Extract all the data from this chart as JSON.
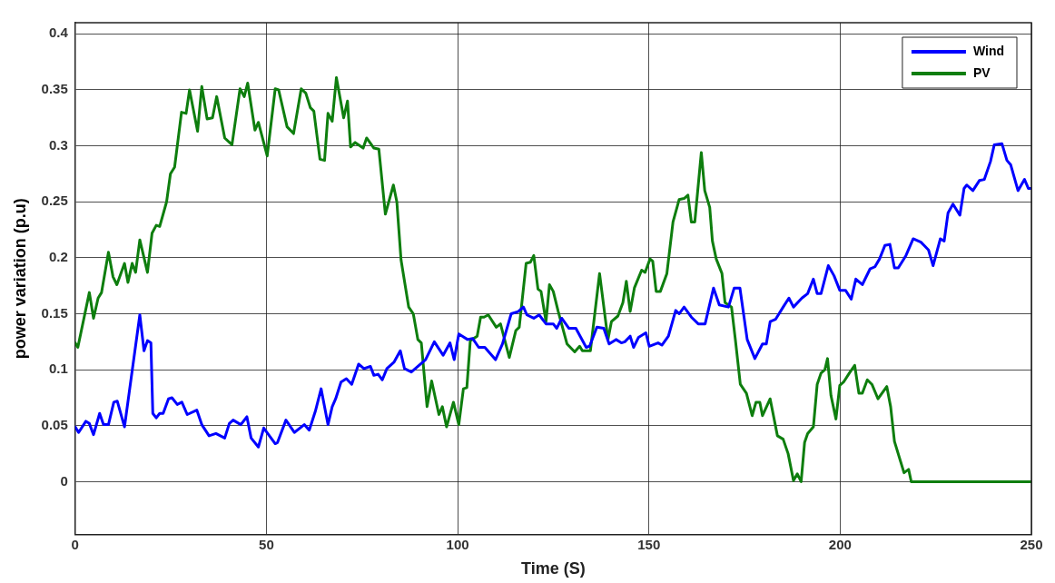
{
  "chart_data": {
    "type": "line",
    "xlabel": "Time (S)",
    "ylabel": "power variation (p.u)",
    "xlim": [
      0,
      250
    ],
    "xticks": [
      0,
      50,
      100,
      150,
      200,
      250
    ],
    "ylim": [
      -0.047,
      0.41
    ],
    "yticks": [
      0,
      0.05,
      0.1,
      0.15,
      0.2,
      0.25,
      0.3,
      0.35,
      0.4
    ],
    "grid": true,
    "legend": "top right",
    "marker": "none",
    "line_style": "solid",
    "series": [
      {
        "name": "Wind",
        "color": "#0000ff",
        "x": [
          0,
          0.9,
          2.8,
          3.7,
          4.8,
          6.4,
          7.4,
          8.7,
          10.1,
          11,
          12.9,
          16.9,
          18,
          18.9,
          19.8,
          20.3,
          21.2,
          22.1,
          23,
          24.4,
          25.3,
          26.7,
          27.9,
          29.3,
          31.8,
          33.1,
          35,
          36.8,
          39.1,
          40.3,
          41.3,
          43.3,
          44.9,
          46,
          47.9,
          49.3,
          52.3,
          52.9,
          55.1,
          57.3,
          59.9,
          61.2,
          62.8,
          64.3,
          66.1,
          67.2,
          68.1,
          69.5,
          70.9,
          72.3,
          74.1,
          75.5,
          77.2,
          78.1,
          79.2,
          80.3,
          81.5,
          83.4,
          85,
          86.1,
          87.9,
          91.6,
          93.9,
          96.2,
          98,
          99.1,
          100.3,
          102.6,
          103.9,
          105.5,
          107.1,
          109.9,
          111.7,
          114,
          115.8,
          117.2,
          118.1,
          119.9,
          121.3,
          123.1,
          125,
          125.9,
          127.2,
          129.1,
          130.9,
          133.6,
          134.5,
          136.4,
          138.2,
          139.6,
          141.4,
          142.8,
          143.7,
          145.1,
          146,
          147.3,
          149.2,
          150.1,
          152.4,
          153.4,
          155.1,
          157,
          157.9,
          159.2,
          161.1,
          162.9,
          164.7,
          166.9,
          168.4,
          170.8,
          172.3,
          173.8,
          175.7,
          177.7,
          179.7,
          180.7,
          181.7,
          183.1,
          185.1,
          186.6,
          187.8,
          190,
          191.5,
          193,
          194,
          195,
          196.9,
          198.4,
          199.9,
          201.4,
          202.9,
          204.1,
          205.8,
          207.8,
          209.1,
          210.3,
          211.7,
          213,
          214.2,
          215.2,
          217.2,
          219.1,
          221.1,
          223.1,
          224.3,
          226.2,
          227.2,
          228.2,
          229.5,
          231.3,
          232.4,
          233.1,
          234.7,
          236.4,
          237.7,
          239.3,
          240.3,
          242.3,
          243.6,
          244.6,
          246.5,
          248.2,
          249.2,
          250
        ],
        "values": [
          0.049,
          0.044,
          0.054,
          0.052,
          0.042,
          0.061,
          0.051,
          0.051,
          0.071,
          0.072,
          0.049,
          0.149,
          0.117,
          0.126,
          0.124,
          0.061,
          0.057,
          0.061,
          0.061,
          0.074,
          0.075,
          0.069,
          0.071,
          0.06,
          0.064,
          0.051,
          0.041,
          0.043,
          0.039,
          0.052,
          0.055,
          0.051,
          0.058,
          0.039,
          0.031,
          0.048,
          0.034,
          0.035,
          0.055,
          0.044,
          0.051,
          0.046,
          0.063,
          0.083,
          0.051,
          0.067,
          0.074,
          0.089,
          0.092,
          0.087,
          0.105,
          0.101,
          0.103,
          0.095,
          0.096,
          0.091,
          0.101,
          0.107,
          0.117,
          0.101,
          0.098,
          0.109,
          0.125,
          0.113,
          0.124,
          0.109,
          0.132,
          0.127,
          0.128,
          0.12,
          0.12,
          0.109,
          0.123,
          0.15,
          0.152,
          0.156,
          0.149,
          0.146,
          0.149,
          0.141,
          0.141,
          0.137,
          0.146,
          0.137,
          0.137,
          0.12,
          0.121,
          0.138,
          0.137,
          0.123,
          0.127,
          0.124,
          0.125,
          0.13,
          0.12,
          0.129,
          0.133,
          0.121,
          0.124,
          0.122,
          0.13,
          0.153,
          0.15,
          0.156,
          0.147,
          0.141,
          0.141,
          0.173,
          0.158,
          0.156,
          0.173,
          0.173,
          0.127,
          0.11,
          0.123,
          0.123,
          0.143,
          0.145,
          0.156,
          0.164,
          0.156,
          0.164,
          0.168,
          0.181,
          0.168,
          0.168,
          0.193,
          0.184,
          0.171,
          0.171,
          0.163,
          0.181,
          0.176,
          0.19,
          0.192,
          0.199,
          0.211,
          0.212,
          0.191,
          0.191,
          0.202,
          0.217,
          0.214,
          0.207,
          0.193,
          0.217,
          0.215,
          0.24,
          0.248,
          0.238,
          0.262,
          0.265,
          0.26,
          0.269,
          0.27,
          0.286,
          0.301,
          0.302,
          0.287,
          0.283,
          0.26,
          0.27,
          0.262,
          0.262
        ]
      },
      {
        "name": "PV",
        "color": "#0e7e0e",
        "x": [
          0,
          0.7,
          3.7,
          4.8,
          6,
          6.9,
          8.7,
          9.9,
          10.9,
          12.9,
          13.8,
          14.9,
          15.8,
          16.9,
          18.9,
          20.1,
          21.2,
          22.1,
          23.9,
          24.9,
          26,
          27.8,
          29,
          29.9,
          32,
          33.1,
          34.5,
          35.9,
          37,
          39.1,
          41,
          43.1,
          44.2,
          45.1,
          47,
          47.9,
          50.2,
          52.3,
          53.2,
          55.4,
          57.1,
          59.1,
          60.3,
          61.5,
          62.4,
          64,
          65.2,
          66.1,
          67.2,
          68.3,
          70.2,
          71.2,
          72,
          73.2,
          75.3,
          76.2,
          78.1,
          79.4,
          81.1,
          83.2,
          84.1,
          85.2,
          87.2,
          88.4,
          89.6,
          90.5,
          92,
          93.2,
          95.1,
          96,
          97.1,
          98.9,
          100.3,
          101.5,
          102.4,
          103.3,
          105.1,
          106,
          106.9,
          108,
          110.1,
          111.2,
          113.5,
          115.2,
          116.1,
          117.9,
          119,
          119.9,
          121,
          121.8,
          123.1,
          124,
          125,
          126.3,
          128.6,
          130.6,
          131.9,
          132.6,
          134.7,
          137.1,
          139.3,
          140.2,
          141.9,
          143.2,
          144.1,
          145.1,
          146.2,
          148.1,
          149,
          150.3,
          151,
          151.9,
          153,
          154.7,
          156.3,
          157.9,
          159.2,
          160.2,
          161.1,
          162,
          163.7,
          164.6,
          165.9,
          166.6,
          167.6,
          169.1,
          169.9,
          171.6,
          172.6,
          173.9,
          175.5,
          177,
          178,
          179,
          179.7,
          181.7,
          183.6,
          185.1,
          186.4,
          187.8,
          188.8,
          189.8,
          190.7,
          191.5,
          193,
          194,
          195,
          196,
          196.7,
          197.6,
          198.9,
          199.9,
          200.9,
          202.4,
          203.8,
          204.9,
          205.8,
          207.1,
          208.3,
          209.9,
          212.2,
          213.2,
          214.2,
          216.7,
          217.9,
          218.6,
          250
        ],
        "values": [
          0.124,
          0.12,
          0.169,
          0.146,
          0.164,
          0.169,
          0.205,
          0.183,
          0.176,
          0.195,
          0.178,
          0.195,
          0.187,
          0.216,
          0.187,
          0.222,
          0.229,
          0.228,
          0.25,
          0.275,
          0.281,
          0.33,
          0.329,
          0.35,
          0.313,
          0.353,
          0.324,
          0.325,
          0.344,
          0.307,
          0.301,
          0.351,
          0.344,
          0.356,
          0.314,
          0.321,
          0.291,
          0.351,
          0.35,
          0.317,
          0.311,
          0.351,
          0.347,
          0.334,
          0.331,
          0.288,
          0.287,
          0.329,
          0.322,
          0.361,
          0.325,
          0.34,
          0.299,
          0.303,
          0.298,
          0.307,
          0.298,
          0.297,
          0.239,
          0.265,
          0.25,
          0.198,
          0.156,
          0.15,
          0.127,
          0.124,
          0.067,
          0.09,
          0.06,
          0.067,
          0.049,
          0.071,
          0.051,
          0.083,
          0.084,
          0.126,
          0.13,
          0.147,
          0.147,
          0.149,
          0.138,
          0.141,
          0.111,
          0.135,
          0.138,
          0.195,
          0.196,
          0.202,
          0.172,
          0.17,
          0.143,
          0.176,
          0.17,
          0.152,
          0.123,
          0.116,
          0.121,
          0.117,
          0.117,
          0.186,
          0.127,
          0.143,
          0.148,
          0.16,
          0.179,
          0.152,
          0.173,
          0.189,
          0.187,
          0.199,
          0.197,
          0.17,
          0.17,
          0.186,
          0.232,
          0.252,
          0.253,
          0.256,
          0.232,
          0.232,
          0.294,
          0.26,
          0.245,
          0.215,
          0.199,
          0.186,
          0.16,
          0.156,
          0.127,
          0.087,
          0.079,
          0.059,
          0.071,
          0.071,
          0.059,
          0.074,
          0.041,
          0.038,
          0.025,
          0.001,
          0.007,
          0,
          0.035,
          0.043,
          0.049,
          0.087,
          0.097,
          0.1,
          0.11,
          0.077,
          0.056,
          0.086,
          0.089,
          0.097,
          0.104,
          0.079,
          0.079,
          0.091,
          0.087,
          0.074,
          0.085,
          0.067,
          0.036,
          0.008,
          0.011,
          0,
          0
        ]
      }
    ]
  }
}
